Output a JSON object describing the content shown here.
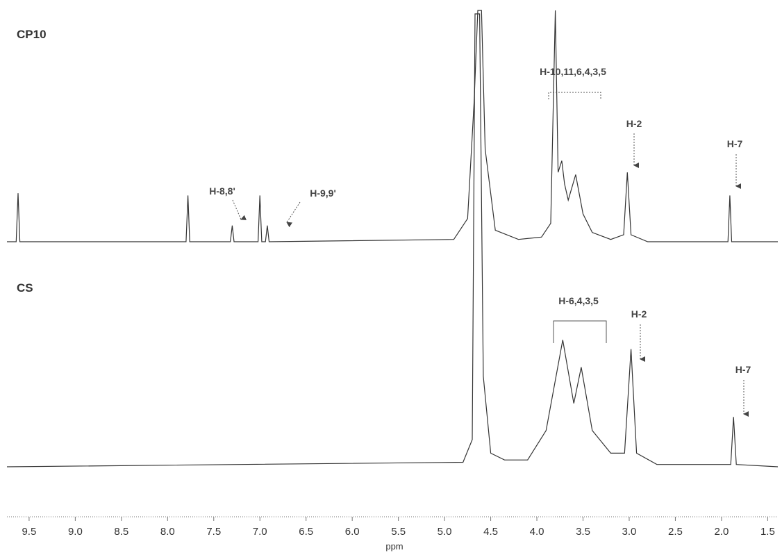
{
  "chart_data": [
    {
      "type": "line",
      "title": "CP10",
      "xlim": [
        9.74,
        1.39
      ],
      "ylim": [
        0,
        100
      ],
      "series": [
        {
          "name": "CP10",
          "color": "#333333",
          "x": [
            9.74,
            9.64,
            9.62,
            9.6,
            7.8,
            7.78,
            7.76,
            7.32,
            7.3,
            7.28,
            7.02,
            7.0,
            6.98,
            6.94,
            6.92,
            6.9,
            4.9,
            4.75,
            4.68,
            4.64,
            4.6,
            4.56,
            4.45,
            4.2,
            3.95,
            3.85,
            3.8,
            3.77,
            3.73,
            3.7,
            3.66,
            3.58,
            3.5,
            3.4,
            3.2,
            3.06,
            3.02,
            2.98,
            2.8,
            2.3,
            1.93,
            1.91,
            1.89,
            1.39
          ],
          "values": [
            0,
            0,
            21,
            0,
            0,
            20,
            0,
            0,
            7,
            0,
            0,
            20,
            0,
            0,
            7,
            0,
            1,
            10,
            60,
            100,
            100,
            40,
            5,
            1,
            2,
            8,
            100,
            30,
            35,
            25,
            18,
            29,
            12,
            4,
            1,
            3,
            30,
            3,
            0,
            0,
            0,
            20,
            0,
            0
          ]
        }
      ],
      "annotations": [
        "H-10,11,6,4,3,5",
        "H-2",
        "H-7",
        "H-8,8'",
        "H-9,9'"
      ]
    },
    {
      "type": "line",
      "title": "CS",
      "xlim": [
        9.74,
        1.39
      ],
      "ylim": [
        0,
        100
      ],
      "xlabel": "ppm",
      "xticks": [
        9.5,
        {
          "value": 9,
          "label": "9.0"
        },
        8.5,
        {
          "value": 8,
          "label": "8.0"
        },
        7.5,
        {
          "value": 7,
          "label": "7.0"
        },
        6.5,
        {
          "value": 6,
          "label": "6.0"
        },
        5.5,
        {
          "value": 5,
          "label": "5.0"
        },
        4.5,
        {
          "value": 4,
          "label": "4.0"
        },
        3.5,
        {
          "value": 3,
          "label": "3.0"
        },
        2.5,
        {
          "value": 2,
          "label": "2.0"
        },
        1.5
      ],
      "series": [
        {
          "name": "CS",
          "color": "#333333",
          "x": [
            9.74,
            4.8,
            4.7,
            4.67,
            4.62,
            4.58,
            4.5,
            4.35,
            4.1,
            3.9,
            3.72,
            3.6,
            3.52,
            3.4,
            3.2,
            3.05,
            2.98,
            2.92,
            2.7,
            1.9,
            1.87,
            1.84,
            1.39
          ],
          "values": [
            0,
            1,
            6,
            100,
            100,
            20,
            3,
            1.5,
            1.5,
            8,
            28,
            14,
            22,
            8,
            3,
            3,
            26,
            3,
            0.5,
            0.5,
            11,
            0.5,
            0
          ]
        }
      ],
      "annotations": [
        "H-6,4,3,5",
        "H-2",
        "H-7"
      ]
    }
  ]
}
